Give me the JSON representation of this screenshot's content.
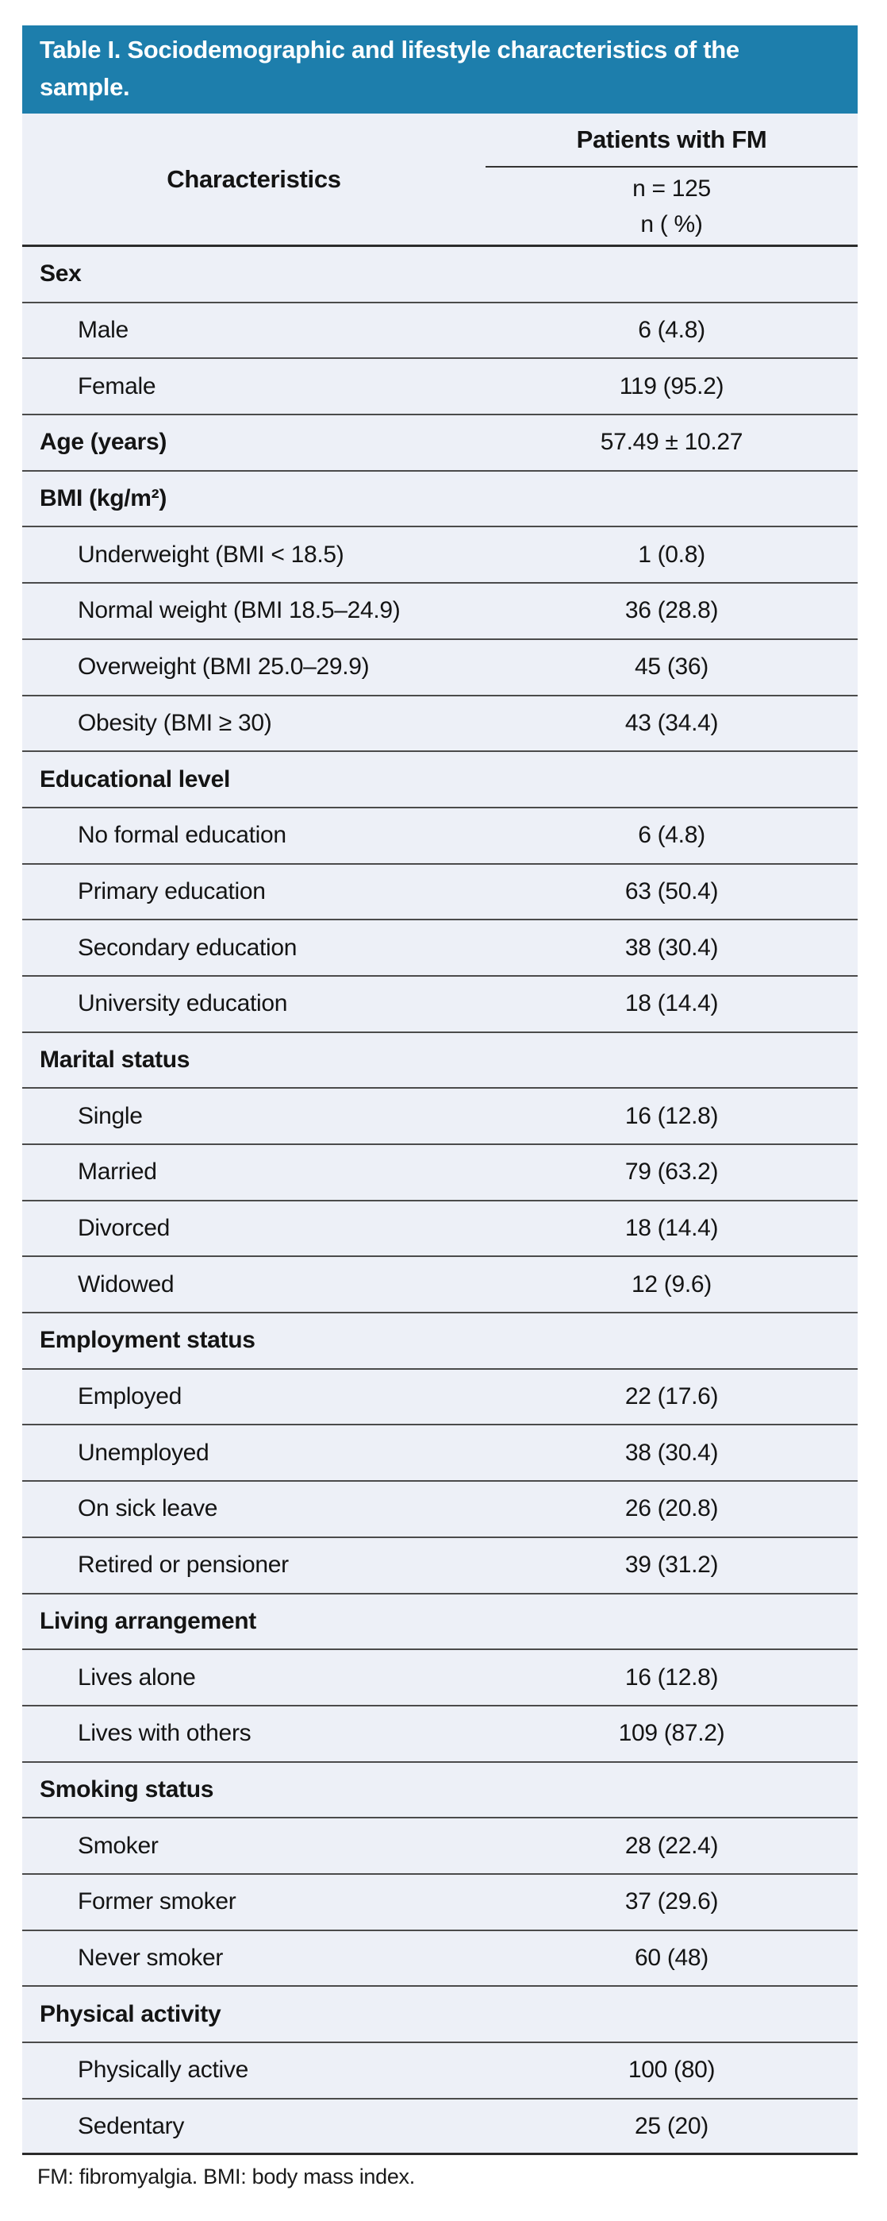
{
  "colors": {
    "header_bg": "#1d7eac",
    "body_bg": "#edf0f7",
    "rule_line": "#4b4b4b",
    "strong_line": "#2b2b2b",
    "title_text": "#ffffff",
    "body_text": "#141414"
  },
  "table": {
    "title": "Table I. Sociodemographic and lifestyle characteristics of the sample.",
    "characteristics_header": "Characteristics",
    "patients_header": "Patients with FM",
    "subheader_line1": "n = 125",
    "subheader_line2": "n ( %)",
    "footnote": "FM: fibromyalgia. BMI: body mass index.",
    "rows": [
      {
        "type": "section",
        "label": "Sex",
        "value": ""
      },
      {
        "type": "item",
        "label": "Male",
        "value": "6 (4.8)"
      },
      {
        "type": "item",
        "label": "Female",
        "value": "119 (95.2)"
      },
      {
        "type": "section",
        "label": "Age (years)",
        "value": "57.49 ± 10.27"
      },
      {
        "type": "section",
        "label": "BMI (kg/m²)",
        "value": ""
      },
      {
        "type": "item",
        "label": "Underweight (BMI < 18.5)",
        "value": "1 (0.8)"
      },
      {
        "type": "item",
        "label": "Normal weight (BMI 18.5–24.9)",
        "value": "36 (28.8)"
      },
      {
        "type": "item",
        "label": "Overweight (BMI 25.0–29.9)",
        "value": "45 (36)"
      },
      {
        "type": "item",
        "label": "Obesity (BMI ≥ 30)",
        "value": "43 (34.4)"
      },
      {
        "type": "section",
        "label": "Educational level",
        "value": ""
      },
      {
        "type": "item",
        "label": "No formal education",
        "value": "6 (4.8)"
      },
      {
        "type": "item",
        "label": "Primary education",
        "value": "63 (50.4)"
      },
      {
        "type": "item",
        "label": "Secondary education",
        "value": "38 (30.4)"
      },
      {
        "type": "item",
        "label": "University education",
        "value": "18 (14.4)"
      },
      {
        "type": "section",
        "label": "Marital status",
        "value": ""
      },
      {
        "type": "item",
        "label": "Single",
        "value": "16 (12.8)"
      },
      {
        "type": "item",
        "label": "Married",
        "value": "79 (63.2)"
      },
      {
        "type": "item",
        "label": "Divorced",
        "value": "18 (14.4)"
      },
      {
        "type": "item",
        "label": "Widowed",
        "value": "12 (9.6)"
      },
      {
        "type": "section",
        "label": "Employment status",
        "value": ""
      },
      {
        "type": "item",
        "label": "Employed",
        "value": "22 (17.6)"
      },
      {
        "type": "item",
        "label": "Unemployed",
        "value": "38 (30.4)"
      },
      {
        "type": "item",
        "label": "On sick leave",
        "value": "26 (20.8)"
      },
      {
        "type": "item",
        "label": "Retired or pensioner",
        "value": "39 (31.2)"
      },
      {
        "type": "section",
        "label": "Living arrangement",
        "value": ""
      },
      {
        "type": "item",
        "label": "Lives alone",
        "value": "16 (12.8)"
      },
      {
        "type": "item",
        "label": "Lives with others",
        "value": "109 (87.2)"
      },
      {
        "type": "section",
        "label": "Smoking status",
        "value": ""
      },
      {
        "type": "item",
        "label": "Smoker",
        "value": "28 (22.4)"
      },
      {
        "type": "item",
        "label": "Former smoker",
        "value": "37 (29.6)"
      },
      {
        "type": "item",
        "label": "Never smoker",
        "value": "60 (48)"
      },
      {
        "type": "section",
        "label": "Physical activity",
        "value": ""
      },
      {
        "type": "item",
        "label": "Physically active",
        "value": "100 (80)"
      },
      {
        "type": "item",
        "label": "Sedentary",
        "value": "25 (20)"
      }
    ]
  }
}
